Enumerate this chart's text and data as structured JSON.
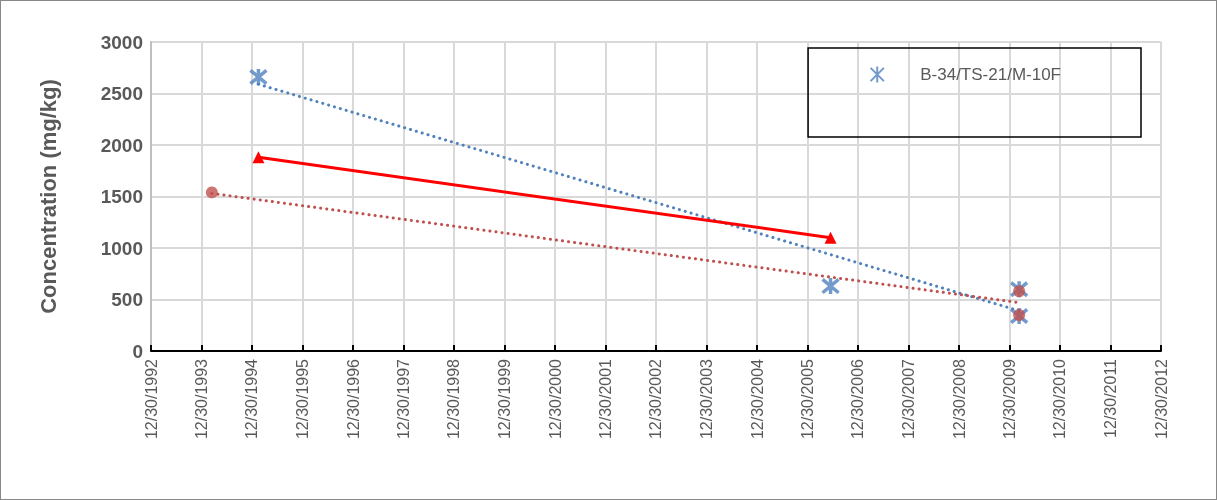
{
  "chart_data": {
    "type": "scatter",
    "ylabel": "Concentration (mg/kg)",
    "xlim": [
      "1992-12-30",
      "2012-12-30"
    ],
    "xticks": [
      {
        "value": "1992-12-30",
        "label": "12/30/1992"
      },
      {
        "value": "1993-12-30",
        "label": "12/30/1993"
      },
      {
        "value": "1994-12-30",
        "label": "12/30/1994"
      },
      {
        "value": "1995-12-30",
        "label": "12/30/1995"
      },
      {
        "value": "1996-12-30",
        "label": "12/30/1996"
      },
      {
        "value": "1997-12-30",
        "label": "12/30/1997"
      },
      {
        "value": "1998-12-30",
        "label": "12/30/1998"
      },
      {
        "value": "1999-12-30",
        "label": "12/30/1999"
      },
      {
        "value": "2000-12-30",
        "label": "12/30/2000"
      },
      {
        "value": "2001-12-30",
        "label": "12/30/2001"
      },
      {
        "value": "2002-12-30",
        "label": "12/30/2002"
      },
      {
        "value": "2003-12-30",
        "label": "12/30/2003"
      },
      {
        "value": "2004-12-30",
        "label": "12/30/2004"
      },
      {
        "value": "2005-12-30",
        "label": "12/30/2005"
      },
      {
        "value": "2006-12-30",
        "label": "12/30/2006"
      },
      {
        "value": "2007-12-30",
        "label": "12/30/2007"
      },
      {
        "value": "2008-12-30",
        "label": "12/30/2008"
      },
      {
        "value": "2009-12-30",
        "label": "12/30/2009"
      },
      {
        "value": "2010-12-30",
        "label": "12/30/2010"
      },
      {
        "value": "2011-12-30",
        "label": "12/30/2011"
      },
      {
        "value": "2012-12-30",
        "label": "12/30/2012"
      }
    ],
    "ylim": [
      0,
      3000
    ],
    "yticks": [
      0,
      500,
      1000,
      1500,
      2000,
      2500,
      3000
    ],
    "grid": true,
    "legend": "top right",
    "series": [
      {
        "name": "B-34/TS-21/M-10F",
        "marker": "cross",
        "color": "#4f81bd",
        "x": [
          "1995-02-15",
          "2006-06-15",
          "2010-03-10",
          "2010-03-10"
        ],
        "values": [
          2660,
          630,
          600,
          340
        ]
      },
      {
        "type": "line",
        "marker": "none",
        "line_style": "dotted",
        "color": "#4f81bd",
        "x": [
          "1995-02-15",
          "2010-03-10"
        ],
        "values": [
          2590,
          390
        ]
      },
      {
        "type": "line",
        "marker": "triangle",
        "line_style": "solid",
        "color": "#ff0000",
        "x": [
          "1995-02-15",
          "2006-06-15"
        ],
        "values": [
          1880,
          1100
        ]
      },
      {
        "marker": "circle",
        "color": "#c0504d",
        "x": [
          "1994-03-15",
          "2010-03-10",
          "2010-03-10"
        ],
        "values": [
          1540,
          580,
          350
        ]
      },
      {
        "type": "line",
        "marker": "none",
        "line_style": "dotted",
        "color": "#c0504d",
        "x": [
          "1994-03-15",
          "2010-03-10"
        ],
        "values": [
          1530,
          470
        ]
      }
    ]
  }
}
